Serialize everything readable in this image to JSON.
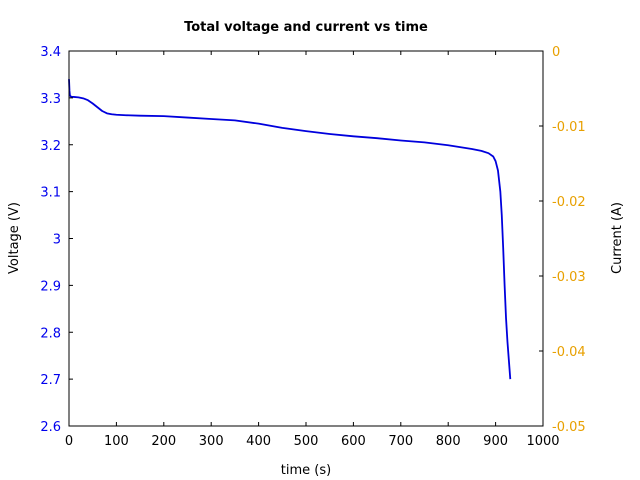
{
  "chart_data": {
    "type": "line",
    "title": "Total voltage and current vs time",
    "xlabel": "time (s)",
    "ylabel_left": "Voltage (V)",
    "ylabel_right": "Current (A)",
    "xlim": [
      0,
      1000
    ],
    "ylim_left": [
      2.6,
      3.4
    ],
    "ylim_right": [
      -0.05,
      0
    ],
    "x_ticks": [
      "0",
      "100",
      "200",
      "300",
      "400",
      "500",
      "600",
      "700",
      "800",
      "900",
      "1000"
    ],
    "y_left_ticks": [
      "2.6",
      "2.7",
      "2.8",
      "2.9",
      "3",
      "3.1",
      "3.2",
      "3.3",
      "3.4"
    ],
    "y_right_ticks": [
      "-0.05",
      "-0.04",
      "-0.03",
      "-0.02",
      "-0.01",
      "0"
    ],
    "grid": false,
    "colors": {
      "voltage": "#0000dd",
      "left_axis": "#0000ee",
      "right_axis": "#e8a000",
      "frame": "#000000"
    },
    "series": [
      {
        "axis": "left",
        "x": [
          0,
          1,
          2,
          5,
          10,
          20,
          30,
          40,
          50,
          60,
          70,
          80,
          90,
          100,
          120,
          150,
          200,
          250,
          300,
          350,
          400,
          450,
          500,
          550,
          600,
          650,
          700,
          750,
          800,
          850,
          870,
          885,
          895,
          900,
          905,
          910,
          913,
          916,
          919,
          922,
          925,
          928,
          931
        ],
        "y": [
          3.34,
          3.315,
          3.305,
          3.302,
          3.302,
          3.301,
          3.299,
          3.295,
          3.288,
          3.28,
          3.272,
          3.267,
          3.265,
          3.264,
          3.263,
          3.262,
          3.261,
          3.258,
          3.255,
          3.252,
          3.245,
          3.236,
          3.229,
          3.223,
          3.218,
          3.214,
          3.209,
          3.205,
          3.199,
          3.191,
          3.187,
          3.182,
          3.175,
          3.165,
          3.145,
          3.1,
          3.05,
          2.98,
          2.9,
          2.83,
          2.78,
          2.74,
          2.7
        ]
      }
    ]
  }
}
